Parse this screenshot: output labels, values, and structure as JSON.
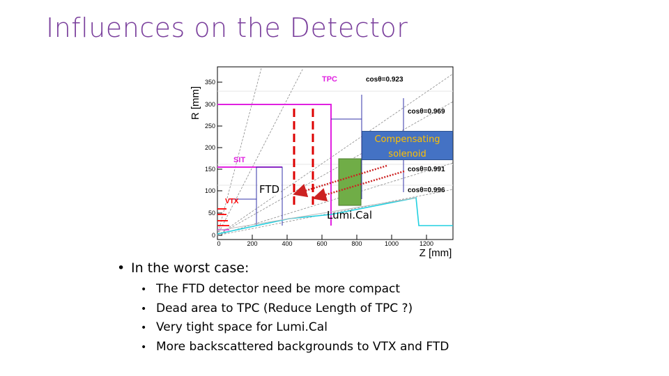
{
  "slide": {
    "title": "Influences on the Detector"
  },
  "figure": {
    "y_axis_label": "R [mm]",
    "x_axis_label": "Z [mm]",
    "y_ticks": [
      "0",
      "50",
      "100",
      "150",
      "200",
      "250",
      "300",
      "350"
    ],
    "x_ticks": [
      "0",
      "200",
      "400",
      "600",
      "800",
      "1000",
      "1200"
    ],
    "subdetectors": {
      "tpc": "TPC",
      "sit": "SIT",
      "vtx": "VTX"
    },
    "angle_labels": [
      "cosθ=0.923",
      "cosθ=0.969",
      "cosθ=0.991",
      "cosθ=0.996"
    ],
    "callout": {
      "line1": "Compensating",
      "line2": "solenoid"
    },
    "ftd_label": "FTD",
    "lumical_label": "Lumi.Cal",
    "colors": {
      "tpc": "#e020e0",
      "sit": "#e020e0",
      "vtx": "#ff0000",
      "beampipe": "#20d0e0",
      "detector_lines": "#3333aa",
      "ftd_dashed": "#dd0000",
      "arrows": "#cc2222",
      "lumical": "#70ad47",
      "callout_bg": "#4472c4",
      "callout_text": "#ffc000",
      "title": "#7a3f9c"
    }
  },
  "bullets": {
    "main": "In the worst case:",
    "sub": [
      "The FTD detector need be more compact",
      "Dead area to TPC (Reduce Length of TPC ?)",
      "Very tight space for Lumi.Cal",
      "More backscattered backgrounds to VTX and FTD"
    ]
  }
}
